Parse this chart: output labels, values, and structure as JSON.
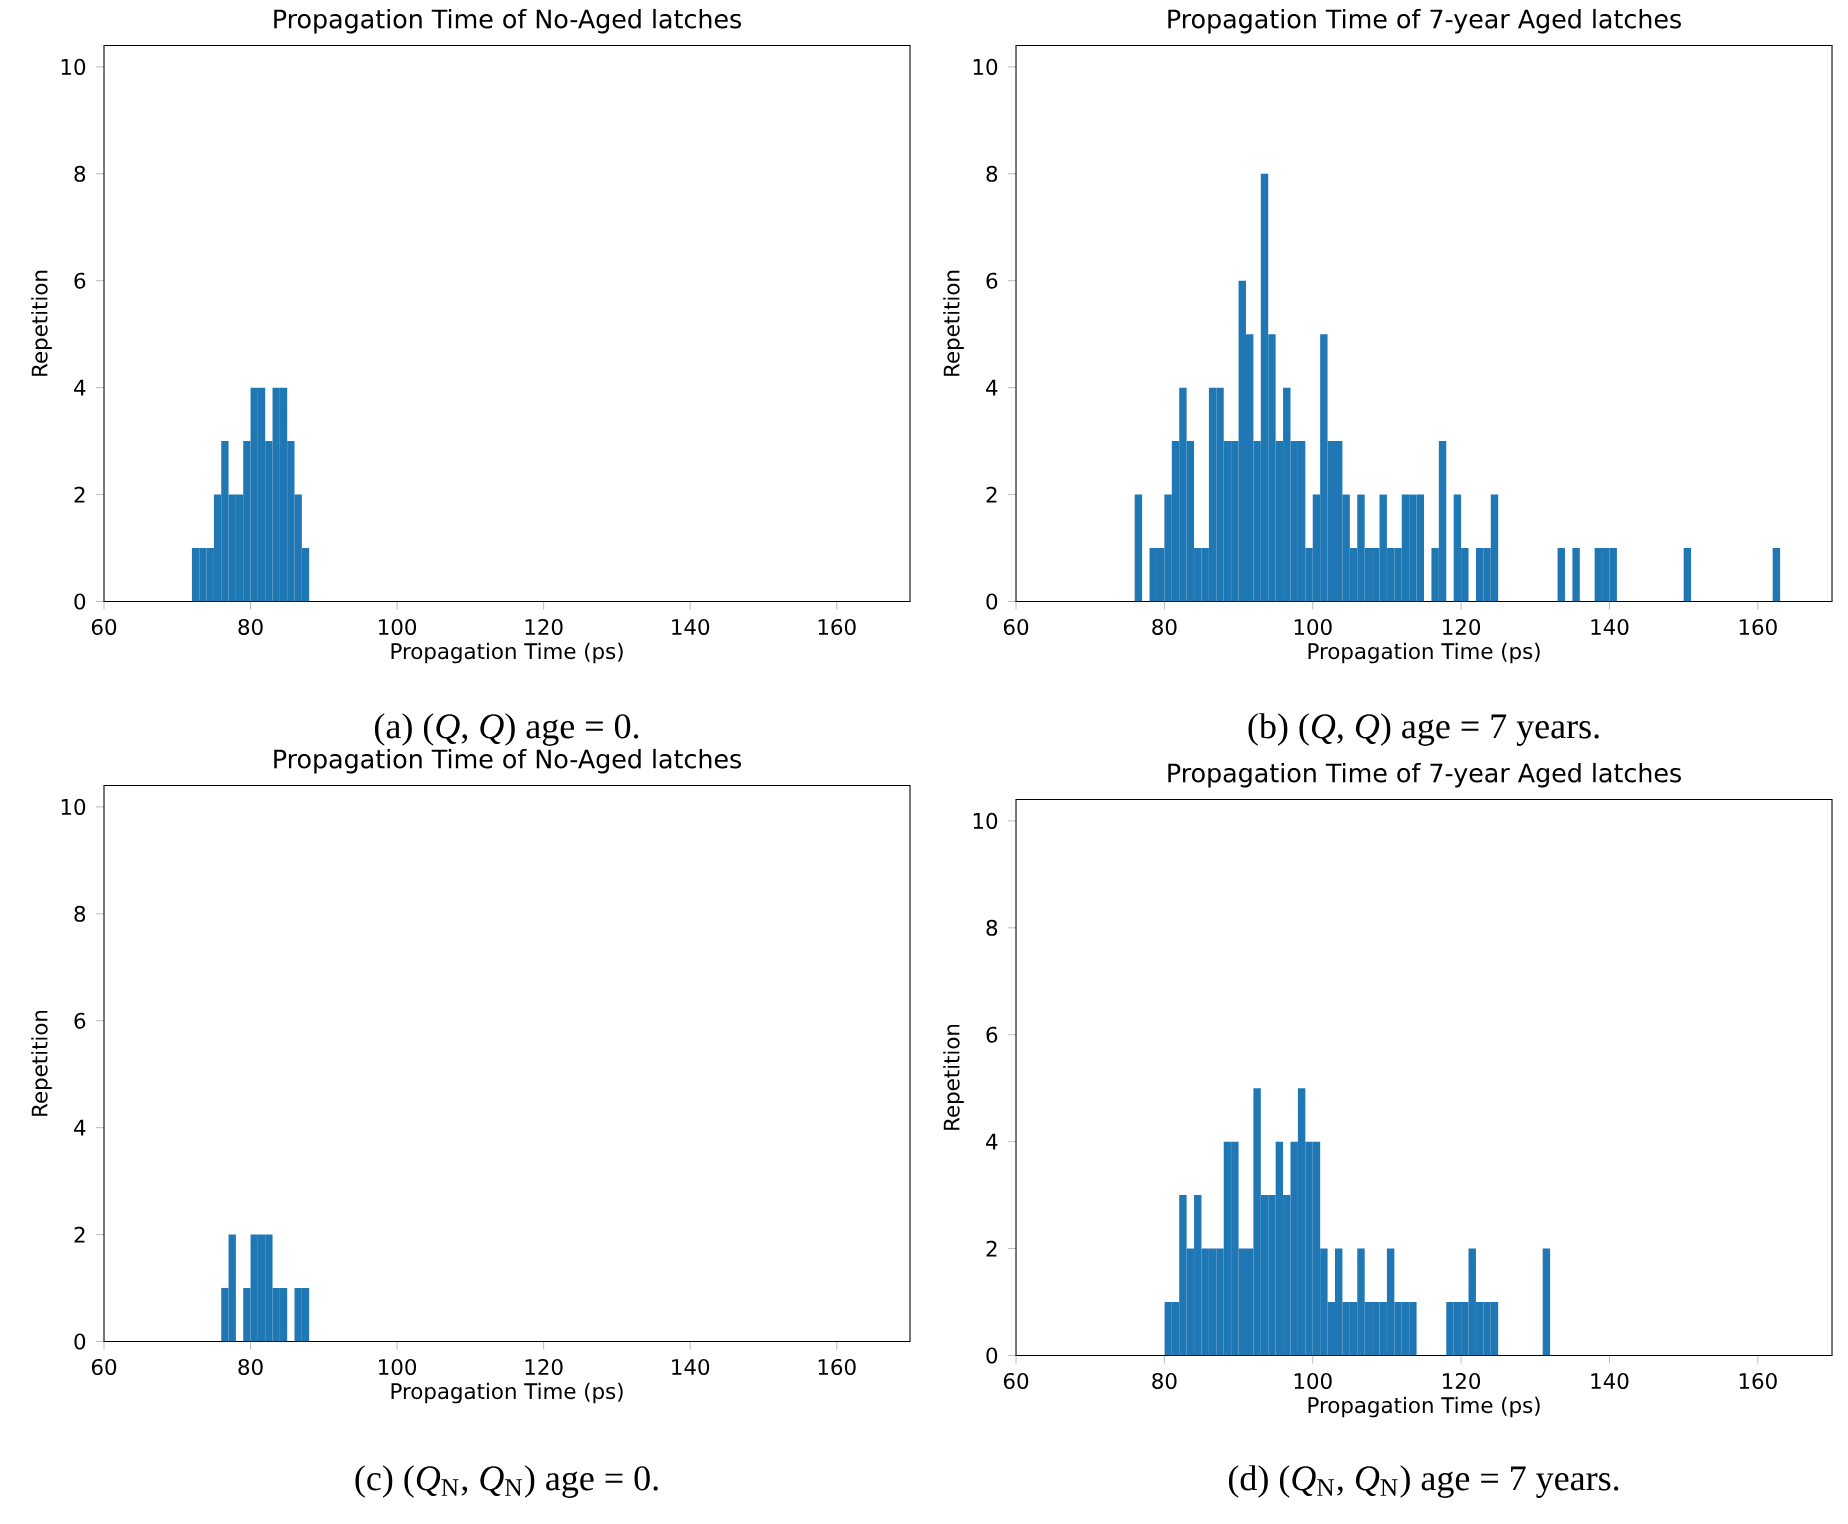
{
  "chart_data": [
    {
      "type": "histogram",
      "title": "Propagation Time of No-Aged latches",
      "xlabel": "Propagation Time (ps)",
      "ylabel": "Repetition",
      "color": "#1f77b4",
      "xlim": [
        60,
        170
      ],
      "ylim": [
        0,
        10.4
      ],
      "xticks": [
        60,
        80,
        100,
        120,
        140,
        160
      ],
      "yticks": [
        0,
        2,
        4,
        6,
        8,
        10
      ],
      "bins": [
        72,
        73,
        74,
        75,
        76,
        77,
        78,
        79,
        80,
        81,
        82,
        83,
        84,
        85,
        86,
        87,
        88
      ],
      "values": [
        1,
        1,
        1,
        2,
        3,
        2,
        2,
        3,
        4,
        4,
        3,
        4,
        4,
        3,
        2,
        1
      ],
      "annotations": [
        "(a) (*Q*, *Q*) age = 0."
      ]
    },
    {
      "type": "histogram",
      "title": "Propagation Time of 7-year Aged latches",
      "xlabel": "Propagation Time (ps)",
      "ylabel": "Repetition",
      "color": "#1f77b4",
      "xlim": [
        60,
        170
      ],
      "ylim": [
        0,
        10.4
      ],
      "xticks": [
        60,
        80,
        100,
        120,
        140,
        160
      ],
      "yticks": [
        0,
        2,
        4,
        6,
        8,
        10
      ],
      "bins": [
        76,
        77,
        78,
        79,
        80,
        81,
        82,
        83,
        84,
        85,
        86,
        87,
        88,
        89,
        90,
        91,
        92,
        93,
        94,
        95,
        96,
        97,
        98,
        99,
        100,
        101,
        102,
        103,
        104,
        105,
        106,
        107,
        108,
        109,
        110,
        111,
        112,
        113,
        114,
        115,
        116,
        117,
        118,
        119,
        120,
        121,
        122,
        123,
        124,
        125,
        126,
        127,
        128,
        129,
        130,
        131,
        132,
        133,
        134,
        135,
        136,
        137,
        138,
        139,
        140,
        141,
        142,
        143,
        144,
        145,
        146,
        147,
        148,
        149,
        150,
        151,
        152,
        153,
        154,
        155,
        156,
        157,
        158,
        159,
        160,
        161,
        162,
        163
      ],
      "values": [
        2,
        0,
        1,
        1,
        2,
        3,
        4,
        3,
        1,
        1,
        4,
        4,
        3,
        3,
        6,
        5,
        3,
        8,
        5,
        3,
        4,
        3,
        3,
        1,
        2,
        5,
        3,
        3,
        2,
        1,
        2,
        1,
        1,
        2,
        1,
        1,
        2,
        2,
        2,
        0,
        1,
        3,
        0,
        2,
        1,
        0,
        1,
        1,
        2,
        0,
        0,
        0,
        0,
        0,
        0,
        0,
        0,
        1,
        0,
        1,
        0,
        0,
        1,
        1,
        1,
        0,
        0,
        0,
        0,
        0,
        0,
        0,
        0,
        0,
        1,
        0,
        0,
        0,
        0,
        0,
        0,
        0,
        0,
        0,
        0,
        0,
        1
      ],
      "annotations": [
        "(b) (*Q*, *Q*) age = 7 years."
      ]
    },
    {
      "type": "histogram",
      "title": "Propagation Time of No-Aged latches",
      "xlabel": "Propagation Time (ps)",
      "ylabel": "Repetition",
      "color": "#1f77b4",
      "xlim": [
        60,
        170
      ],
      "ylim": [
        0,
        10.4
      ],
      "xticks": [
        60,
        80,
        100,
        120,
        140,
        160
      ],
      "yticks": [
        0,
        2,
        4,
        6,
        8,
        10
      ],
      "bins": [
        76,
        77,
        78,
        79,
        80,
        81,
        82,
        83,
        84,
        85,
        86,
        87,
        88
      ],
      "values": [
        1,
        2,
        0,
        1,
        2,
        2,
        2,
        1,
        1,
        0,
        1,
        1
      ],
      "annotations": [
        "(c) (*Q*$_{N}$, *Q*$_{N}$) age = 0."
      ]
    },
    {
      "type": "histogram",
      "title": "Propagation Time of 7-year Aged latches",
      "xlabel": "Propagation Time (ps)",
      "ylabel": "Repetition",
      "color": "#1f77b4",
      "xlim": [
        60,
        170
      ],
      "ylim": [
        0,
        10.4
      ],
      "xticks": [
        60,
        80,
        100,
        120,
        140,
        160
      ],
      "yticks": [
        0,
        2,
        4,
        6,
        8,
        10
      ],
      "bins": [
        80,
        81,
        82,
        83,
        84,
        85,
        86,
        87,
        88,
        89,
        90,
        91,
        92,
        93,
        94,
        95,
        96,
        97,
        98,
        99,
        100,
        101,
        102,
        103,
        104,
        105,
        106,
        107,
        108,
        109,
        110,
        111,
        112,
        113,
        114,
        115,
        116,
        117,
        118,
        119,
        120,
        121,
        122,
        123,
        124,
        125,
        126,
        127,
        128,
        129,
        130,
        131,
        132
      ],
      "values": [
        1,
        1,
        3,
        2,
        3,
        2,
        2,
        2,
        4,
        4,
        2,
        2,
        5,
        3,
        3,
        4,
        3,
        4,
        5,
        4,
        4,
        2,
        1,
        2,
        1,
        1,
        2,
        1,
        1,
        1,
        2,
        1,
        1,
        1,
        0,
        0,
        0,
        0,
        1,
        1,
        1,
        2,
        1,
        1,
        1,
        0,
        0,
        0,
        0,
        0,
        0,
        2
      ],
      "annotations": [
        "(d) (*Q*$_{N}$, *Q*$_{N}$) age = 7 years."
      ]
    }
  ]
}
